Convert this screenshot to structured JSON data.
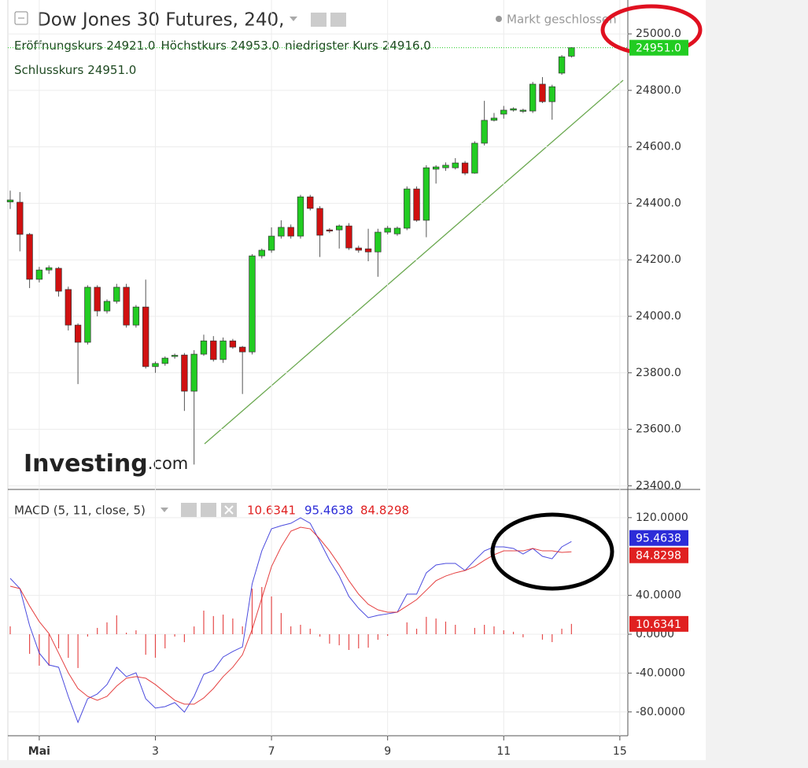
{
  "chart_data": [
    {
      "type": "candlestick",
      "title": "Dow Jones 30 Futures, 240,",
      "status": "Markt geschlossen",
      "legend_fields": [
        {
          "label": "Eröffnungskurs",
          "value": "24921.0"
        },
        {
          "label": "Höchstkurs",
          "value": "24953.0"
        },
        {
          "label": "niedrigster Kurs",
          "value": "24916.0"
        },
        {
          "label": "Schlusskurs",
          "value": "24951.0"
        }
      ],
      "watermark": [
        "Investing",
        ".com"
      ],
      "up_color": "#22cc22",
      "down_color": "#d01010",
      "candles": [
        [
          24405,
          24445,
          24380,
          24412
        ],
        [
          24404,
          24440,
          24230,
          24290
        ],
        [
          24290,
          24295,
          24100,
          24131
        ],
        [
          24131,
          24175,
          24120,
          24164
        ],
        [
          24164,
          24180,
          24150,
          24172
        ],
        [
          24170,
          24175,
          24070,
          24089
        ],
        [
          24095,
          24105,
          23950,
          23969
        ],
        [
          23969,
          23975,
          23760,
          23908
        ],
        [
          23908,
          24110,
          23900,
          24103
        ],
        [
          24103,
          24110,
          24000,
          24019
        ],
        [
          24019,
          24060,
          24010,
          24053
        ],
        [
          24053,
          24115,
          24045,
          24103
        ],
        [
          24103,
          24115,
          23960,
          23969
        ],
        [
          23969,
          24040,
          23960,
          24033
        ],
        [
          24033,
          24130,
          23815,
          23822
        ],
        [
          23822,
          23840,
          23800,
          23833
        ],
        [
          23833,
          23858,
          23825,
          23852
        ],
        [
          23858,
          23868,
          23850,
          23862
        ],
        [
          23863,
          23870,
          23665,
          23735
        ],
        [
          23735,
          23880,
          23475,
          23866
        ],
        [
          23866,
          23935,
          23860,
          23913
        ],
        [
          23913,
          23930,
          23840,
          23847
        ],
        [
          23847,
          23925,
          23835,
          23913
        ],
        [
          23913,
          23920,
          23885,
          23891
        ],
        [
          23891,
          23895,
          23725,
          23874
        ],
        [
          23874,
          24220,
          23865,
          24214
        ],
        [
          24214,
          24240,
          24205,
          24234
        ],
        [
          24234,
          24315,
          24225,
          24284
        ],
        [
          24284,
          24340,
          24275,
          24315
        ],
        [
          24315,
          24325,
          24275,
          24284
        ],
        [
          24284,
          24430,
          24275,
          24423
        ],
        [
          24423,
          24430,
          24375,
          24382
        ],
        [
          24382,
          24390,
          24210,
          24287
        ],
        [
          24306,
          24312,
          24295,
          24302
        ],
        [
          24306,
          24325,
          24240,
          24320
        ],
        [
          24320,
          24330,
          24235,
          24242
        ],
        [
          24242,
          24250,
          24225,
          24234
        ],
        [
          24239,
          24310,
          24195,
          24228
        ],
        [
          24228,
          24310,
          24140,
          24298
        ],
        [
          24298,
          24320,
          24290,
          24312
        ],
        [
          24292,
          24318,
          24285,
          24312
        ],
        [
          24312,
          24460,
          24305,
          24451
        ],
        [
          24451,
          24460,
          24335,
          24340
        ],
        [
          24340,
          24535,
          24280,
          24526
        ],
        [
          24521,
          24535,
          24470,
          24529
        ],
        [
          24526,
          24545,
          24515,
          24535
        ],
        [
          24526,
          24560,
          24520,
          24543
        ],
        [
          24543,
          24550,
          24500,
          24507
        ],
        [
          24507,
          24620,
          24505,
          24613
        ],
        [
          24613,
          24763,
          24605,
          24694
        ],
        [
          24694,
          24720,
          24690,
          24702
        ],
        [
          24716,
          24745,
          24700,
          24730
        ],
        [
          24730,
          24740,
          24725,
          24735
        ],
        [
          24727,
          24735,
          24720,
          24730
        ],
        [
          24727,
          24830,
          24720,
          24822
        ],
        [
          24822,
          24847,
          24755,
          24760
        ],
        [
          24760,
          24820,
          24696,
          24813
        ],
        [
          24861,
          24925,
          24855,
          24919
        ],
        [
          24921,
          24953,
          24916,
          24951
        ],
        null,
        null,
        null,
        null,
        null
      ],
      "price_marker": {
        "value": 24951,
        "label": "24951.0",
        "color": "#22cc22"
      },
      "ylim": [
        23387,
        25120
      ],
      "yticks": [
        {
          "value": 23400,
          "label": "23400.0"
        },
        {
          "value": 23600,
          "label": "23600.0"
        },
        {
          "value": 23800,
          "label": "23800.0"
        },
        {
          "value": 24000,
          "label": "24000.0"
        },
        {
          "value": 24200,
          "label": "24200.0"
        },
        {
          "value": 24400,
          "label": "24400.0"
        },
        {
          "value": 24600,
          "label": "24600.0"
        },
        {
          "value": 24800,
          "label": "24800.0"
        },
        {
          "value": 25000,
          "label": "25000.0"
        }
      ],
      "grid": true
    },
    {
      "type": "line",
      "title": "MACD (5, 11, close, 5)",
      "categories": [
        null,
        null,
        null,
        "Mai",
        null,
        null,
        null,
        null,
        null,
        null,
        null,
        null,
        null,
        null,
        null,
        "3",
        null,
        null,
        null,
        null,
        null,
        null,
        null,
        null,
        null,
        null,
        null,
        "7",
        null,
        null,
        null,
        null,
        null,
        null,
        null,
        null,
        null,
        null,
        null,
        "9",
        null,
        null,
        null,
        null,
        null,
        null,
        null,
        null,
        null,
        null,
        null,
        "11",
        null,
        null,
        null,
        null,
        null,
        null,
        null,
        null,
        null,
        null,
        null,
        "15"
      ],
      "series": [
        {
          "kind": "histogram",
          "color": "#e02020",
          "last_label": "10.6341",
          "values": [
            8.1,
            0,
            -20.2,
            -32.4,
            -32.4,
            -14.6,
            -24.3,
            -34.8,
            -2.4,
            6.5,
            12.2,
            19.4,
            1.6,
            4,
            -21.1,
            -24.2,
            -14.6,
            -2.4,
            -8.2,
            8,
            24.3,
            18.7,
            20.2,
            16.2,
            8.1,
            46.9,
            48.6,
            38.9,
            21.8,
            8.1,
            9.7,
            5.7,
            -2.5,
            -9.7,
            -11.4,
            -16.2,
            -14.6,
            -13.8,
            -5.7,
            -1.7,
            0,
            12.2,
            5.7,
            17.9,
            16.2,
            13,
            9.7,
            0,
            6.5,
            9.7,
            8.1,
            4.1,
            2.5,
            -3.2,
            0,
            -5.6,
            -8.1,
            5.7,
            10.6341,
            null,
            null,
            null,
            null,
            null
          ]
        },
        {
          "kind": "line",
          "color": "#2c2cd8",
          "last_label": "95.4638",
          "values": [
            57.5,
            47,
            8.9,
            -19.4,
            -31.6,
            -34,
            -64,
            -90.7,
            -66.4,
            -61.5,
            -51.8,
            -34,
            -43.7,
            -39.7,
            -66.4,
            -76,
            -74.5,
            -70.4,
            -80.2,
            -64,
            -41.3,
            -37.2,
            -23.5,
            -17.8,
            -13,
            51.8,
            85.8,
            108.5,
            111.7,
            114.2,
            119.8,
            114.2,
            95.5,
            76.1,
            59.9,
            38.9,
            26.7,
            17,
            19.4,
            21,
            22.7,
            41.3,
            41.3,
            63.2,
            71.3,
            72.9,
            72.9,
            65.6,
            76.1,
            85.8,
            89.9,
            89.9,
            88.3,
            82.6,
            88.3,
            80.2,
            77.7,
            89.9,
            95.4638,
            null,
            null,
            null,
            null,
            null
          ]
        },
        {
          "kind": "line",
          "color": "#e02020",
          "last_label": "84.8298",
          "values": [
            49.4,
            47,
            29.1,
            13,
            0.8,
            -19.4,
            -39.7,
            -55.9,
            -64,
            -68,
            -64,
            -53.4,
            -45.3,
            -43.7,
            -45.3,
            -51.8,
            -59.9,
            -68,
            -72,
            -72,
            -65.6,
            -55.9,
            -43.7,
            -34,
            -21.1,
            4.9,
            37.2,
            69.6,
            89.9,
            106.1,
            110.1,
            108.5,
            98,
            85.8,
            71.3,
            55.1,
            41.3,
            30.8,
            25.1,
            22.7,
            22.7,
            29.1,
            35.6,
            45.3,
            55.1,
            59.9,
            63.2,
            65.6,
            69.6,
            76.1,
            81.8,
            85.8,
            85.8,
            85.8,
            88.3,
            85.8,
            85.8,
            84.2,
            84.8298,
            null,
            null,
            null,
            null,
            null
          ]
        }
      ],
      "ylim": [
        -104.5,
        146.6
      ],
      "yticks": [
        {
          "value": -80,
          "label": "-80.0000"
        },
        {
          "value": -40,
          "label": "-40.0000"
        },
        {
          "value": 0,
          "label": "0.0000"
        },
        {
          "value": 40,
          "label": "40.0000"
        },
        {
          "value": 120,
          "label": "120.0000"
        }
      ],
      "grid": true
    }
  ]
}
